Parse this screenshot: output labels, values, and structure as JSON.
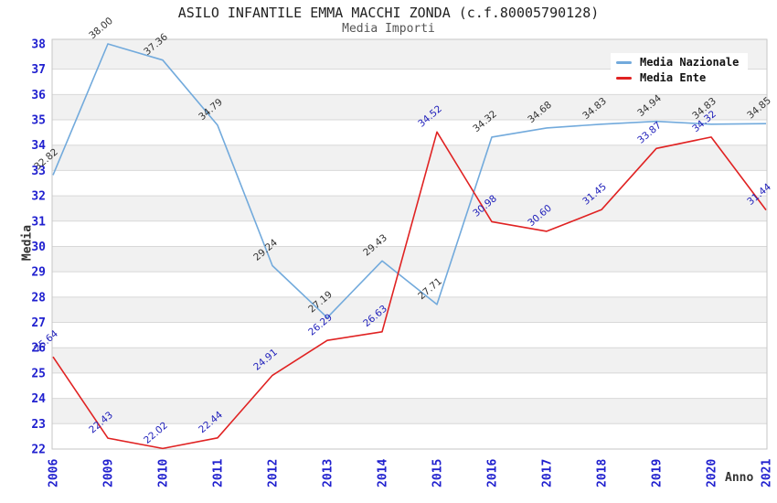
{
  "header": {
    "title": "ASILO INFANTILE EMMA MACCHI ZONDA (c.f.80005790128)",
    "subtitle": "Media Importi"
  },
  "legend": {
    "items": [
      {
        "label": "Media Nazionale",
        "color": "#72aadc"
      },
      {
        "label": "Media Ente",
        "color": "#e02222"
      }
    ]
  },
  "chart_data": {
    "type": "line",
    "title": "ASILO INFANTILE EMMA MACCHI ZONDA (c.f.80005790128)",
    "subtitle": "Media Importi",
    "xlabel": "Anno",
    "ylabel": "Media",
    "categories": [
      "2006",
      "2009",
      "2010",
      "2011",
      "2012",
      "2013",
      "2014",
      "2015",
      "2016",
      "2017",
      "2018",
      "2019",
      "2020",
      "2021"
    ],
    "series": [
      {
        "name": "Media Nazionale",
        "color": "#72aadc",
        "label_color": "#333333",
        "values": [
          32.82,
          38.0,
          37.36,
          34.79,
          29.24,
          27.19,
          29.43,
          27.71,
          34.32,
          34.68,
          34.83,
          34.94,
          34.83,
          34.85
        ]
      },
      {
        "name": "Media Ente",
        "color": "#e02222",
        "label_color": "#2222bb",
        "values": [
          25.64,
          22.43,
          22.02,
          22.44,
          24.91,
          26.29,
          26.63,
          34.52,
          30.98,
          30.6,
          31.45,
          33.87,
          34.32,
          31.44
        ]
      }
    ],
    "ylim": [
      22,
      38
    ],
    "y_ticks": [
      22,
      23,
      24,
      25,
      26,
      27,
      28,
      29,
      30,
      31,
      32,
      33,
      34,
      35,
      36,
      37,
      38
    ],
    "grid": true,
    "legend_position": "top-right",
    "styles": {
      "band_color": "#f1f1f1",
      "grid_color": "#d8d8d8",
      "plot_border_color": "#c6c6c6",
      "tick_label_color": "#2020cf",
      "data_label_rotation": -40,
      "x_label_rotation": -90
    }
  }
}
